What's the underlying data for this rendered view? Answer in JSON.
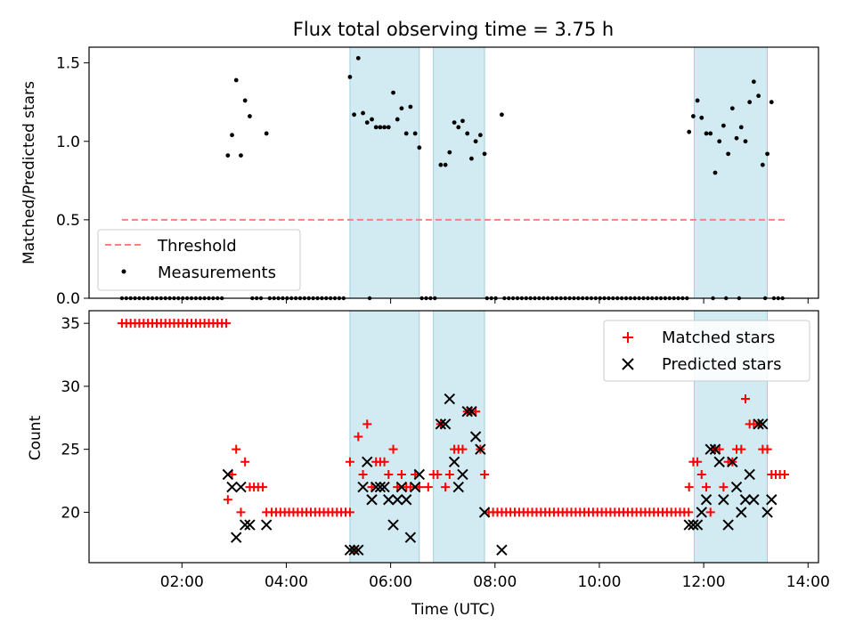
{
  "chart_data": [
    {
      "type": "scatter",
      "panel": "top",
      "title": "Flux total observing time = 3.75 h",
      "ylabel": "Matched/Predicted stars",
      "xlabel": "",
      "xlim": [
        0.22,
        14.2
      ],
      "ylim": [
        0,
        1.6
      ],
      "yticks": [
        0.0,
        0.5,
        1.0,
        1.5
      ],
      "ytick_labels": [
        "0.0",
        "0.5",
        "1.0",
        "1.5"
      ],
      "shaded_intervals": [
        [
          5.22,
          6.55
        ],
        [
          6.82,
          7.8
        ],
        [
          11.82,
          13.22
        ]
      ],
      "shade_color": "#add8e6",
      "threshold": {
        "name": "Threshold",
        "y": 0.5,
        "x_range": [
          0.85,
          13.55
        ],
        "color": "#ff7f7f"
      },
      "legend": {
        "position": "lower-left",
        "entries": [
          "Threshold",
          "Measurements"
        ]
      },
      "series": [
        {
          "name": "Measurements",
          "color": "#000000",
          "x": [
            2.88,
            2.96,
            3.04,
            3.13,
            3.21,
            3.3,
            3.62,
            5.22,
            5.3,
            5.38,
            5.47,
            5.55,
            5.64,
            5.72,
            5.8,
            5.88,
            5.96,
            6.05,
            6.13,
            6.21,
            6.3,
            6.38,
            6.47,
            6.55,
            6.96,
            7.05,
            7.13,
            7.22,
            7.3,
            7.38,
            7.47,
            7.55,
            7.63,
            7.72,
            7.8,
            8.13,
            11.72,
            11.8,
            11.88,
            11.96,
            12.05,
            12.13,
            12.22,
            12.3,
            12.38,
            12.47,
            12.55,
            12.63,
            12.72,
            12.8,
            12.88,
            12.96,
            13.05,
            13.13,
            13.22,
            13.3
          ],
          "y": [
            0.91,
            1.04,
            1.39,
            0.91,
            1.26,
            1.16,
            1.05,
            1.41,
            1.17,
            1.53,
            1.18,
            1.12,
            1.14,
            1.09,
            1.09,
            1.09,
            1.09,
            1.31,
            1.14,
            1.21,
            1.05,
            1.22,
            1.05,
            0.96,
            0.85,
            0.85,
            0.93,
            1.12,
            1.09,
            1.13,
            1.05,
            0.89,
            1.0,
            1.04,
            0.92,
            1.17,
            1.06,
            1.16,
            1.26,
            1.15,
            1.05,
            1.05,
            0.8,
            1.0,
            1.1,
            0.92,
            1.21,
            1.02,
            1.09,
            1.0,
            1.25,
            1.38,
            1.29,
            0.85,
            0.92,
            1.25
          ],
          "note_zero_points": "many points at 0 where no measurement"
        }
      ]
    },
    {
      "type": "scatter",
      "panel": "bottom",
      "xlabel": "Time (UTC)",
      "ylabel": "Count",
      "xlim": [
        0.22,
        14.2
      ],
      "ylim": [
        16,
        36
      ],
      "xticks": [
        2,
        4,
        6,
        8,
        10,
        12,
        14
      ],
      "xtick_labels": [
        "02:00",
        "04:00",
        "06:00",
        "08:00",
        "10:00",
        "12:00",
        "14:00"
      ],
      "yticks": [
        20,
        25,
        30,
        35
      ],
      "ytick_labels": [
        "20",
        "25",
        "30",
        "35"
      ],
      "shaded_intervals": [
        [
          5.22,
          6.55
        ],
        [
          6.82,
          7.8
        ],
        [
          11.82,
          13.22
        ]
      ],
      "legend": {
        "position": "upper-right",
        "entries": [
          "Matched stars",
          "Predicted stars"
        ]
      },
      "series": [
        {
          "name": "Matched stars",
          "marker": "plus",
          "color": "#ff0000",
          "x": [
            2.88,
            2.96,
            3.04,
            3.13,
            3.21,
            3.3,
            3.38,
            3.46,
            3.55,
            3.62,
            5.22,
            5.3,
            5.38,
            5.47,
            5.55,
            5.64,
            5.72,
            5.8,
            5.88,
            5.96,
            6.05,
            6.13,
            6.21,
            6.3,
            6.38,
            6.47,
            6.55,
            6.72,
            6.82,
            6.9,
            6.96,
            7.05,
            7.13,
            7.22,
            7.3,
            7.38,
            7.47,
            7.55,
            7.63,
            7.72,
            7.8,
            11.72,
            11.8,
            11.88,
            11.96,
            12.05,
            12.13,
            12.22,
            12.3,
            12.38,
            12.47,
            12.55,
            12.63,
            12.72,
            12.8,
            12.88,
            12.96,
            13.05,
            13.13,
            13.22,
            13.3,
            13.38,
            13.46,
            13.55
          ],
          "y": [
            21,
            23,
            25,
            20,
            24,
            22,
            22,
            22,
            22,
            20,
            24,
            17,
            26,
            23,
            27,
            22,
            24,
            24,
            24,
            23,
            25,
            22,
            23,
            22,
            22,
            23,
            22,
            22,
            23,
            23,
            27,
            22,
            23,
            25,
            25,
            25,
            28,
            28,
            28,
            25,
            23,
            22,
            24,
            24,
            23,
            22,
            20,
            25,
            25,
            22,
            24,
            24,
            25,
            25,
            29,
            27,
            27,
            27,
            25,
            25,
            23,
            23,
            23,
            23
          ],
          "baseline_35": {
            "x_range": [
              0.85,
              2.88
            ],
            "y": 35
          },
          "baseline_20": [
            {
              "x_range": [
                3.72,
                5.22
              ],
              "y": 20
            },
            {
              "x_range": [
                7.88,
                11.72
              ],
              "y": 20
            }
          ]
        },
        {
          "name": "Predicted stars",
          "marker": "x",
          "color": "#000000",
          "x": [
            2.88,
            2.96,
            3.04,
            3.13,
            3.21,
            3.3,
            3.62,
            5.22,
            5.3,
            5.38,
            5.47,
            5.55,
            5.64,
            5.72,
            5.8,
            5.88,
            5.96,
            6.05,
            6.13,
            6.21,
            6.3,
            6.38,
            6.47,
            6.55,
            6.96,
            7.05,
            7.13,
            7.22,
            7.3,
            7.38,
            7.47,
            7.55,
            7.63,
            7.72,
            7.8,
            8.13,
            11.72,
            11.8,
            11.88,
            11.96,
            12.05,
            12.13,
            12.22,
            12.3,
            12.38,
            12.47,
            12.55,
            12.63,
            12.72,
            12.8,
            12.88,
            12.96,
            13.05,
            13.13,
            13.22,
            13.3
          ],
          "y": [
            23,
            22,
            18,
            22,
            19,
            19,
            19,
            17,
            17,
            17,
            22,
            24,
            21,
            22,
            22,
            22,
            21,
            19,
            21,
            22,
            21,
            18,
            22,
            23,
            27,
            27,
            29,
            24,
            22,
            23,
            28,
            28,
            26,
            25,
            20,
            17,
            19,
            19,
            19,
            20,
            21,
            25,
            25,
            24,
            21,
            19,
            24,
            22,
            20,
            21,
            23,
            21,
            27,
            27,
            20,
            21
          ]
        }
      ]
    }
  ]
}
